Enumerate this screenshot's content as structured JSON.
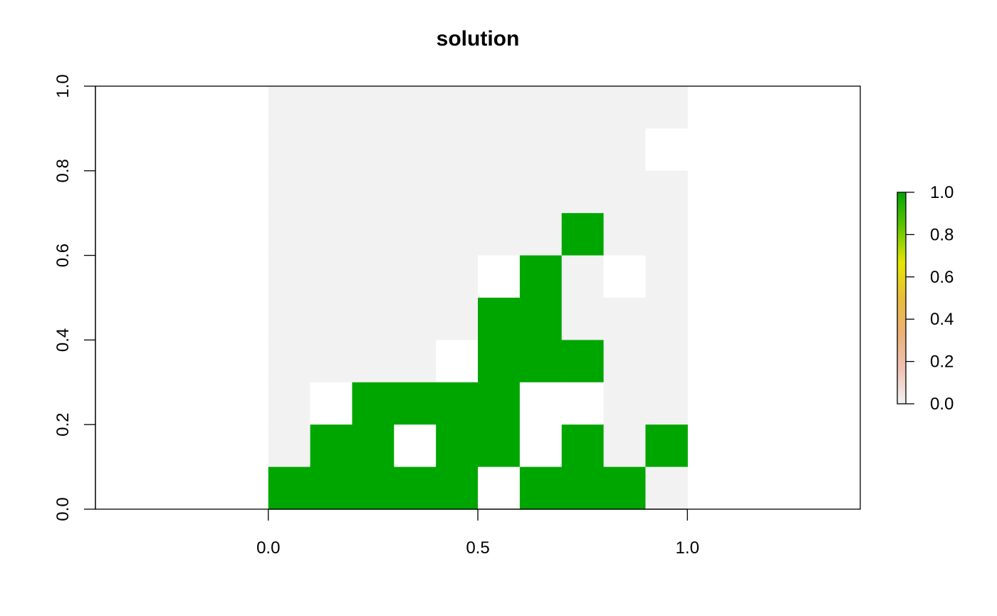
{
  "chart_data": {
    "type": "heatmap",
    "title": "solution",
    "xlabel": "",
    "ylabel": "",
    "xlim": [
      -0.4125,
      1.4125
    ],
    "ylim": [
      0,
      1
    ],
    "x_ticks": [
      0.0,
      0.5,
      1.0
    ],
    "x_tick_labels": [
      "0.0",
      "0.5",
      "1.0"
    ],
    "y_ticks": [
      0.0,
      0.2,
      0.4,
      0.6,
      0.8,
      1.0
    ],
    "y_tick_labels": [
      "0.0",
      "0.2",
      "0.4",
      "0.6",
      "0.8",
      "1.0"
    ],
    "grid_extent": {
      "x": [
        0,
        1
      ],
      "y": [
        0,
        1
      ]
    },
    "grid_note_rows": "row 0 is top (y 0.9-1.0); null = no data",
    "cells": [
      [
        0,
        0,
        0,
        0,
        0,
        0,
        0,
        0,
        0,
        0
      ],
      [
        0,
        0,
        0,
        0,
        0,
        0,
        0,
        0,
        0,
        null
      ],
      [
        0,
        0,
        0,
        0,
        0,
        0,
        0,
        0,
        0,
        0
      ],
      [
        0,
        0,
        0,
        0,
        0,
        0,
        0,
        1,
        0,
        0
      ],
      [
        0,
        0,
        0,
        0,
        0,
        null,
        1,
        0,
        null,
        0
      ],
      [
        0,
        0,
        0,
        0,
        0,
        1,
        1,
        0,
        0,
        0
      ],
      [
        0,
        0,
        0,
        0,
        null,
        1,
        1,
        1,
        0,
        0
      ],
      [
        0,
        null,
        1,
        1,
        1,
        1,
        null,
        null,
        0,
        0
      ],
      [
        0,
        1,
        1,
        null,
        1,
        1,
        null,
        1,
        0,
        1
      ],
      [
        1,
        1,
        1,
        1,
        1,
        null,
        1,
        1,
        1,
        0
      ]
    ],
    "colors": {
      "zero": "#f2f2f2",
      "one": "#00a600",
      "na": "#ffffff"
    },
    "legend": {
      "placement": "right",
      "range": [
        0,
        1
      ],
      "ticks": [
        0.0,
        0.2,
        0.4,
        0.6,
        0.8,
        1.0
      ],
      "tick_labels": [
        "0.0",
        "0.2",
        "0.4",
        "0.6",
        "0.8",
        "1.0"
      ],
      "gradient": [
        "#f2f2f2",
        "#efc2b3",
        "#ecb176",
        "#e9bd3a",
        "#e6e600",
        "#63c600",
        "#00a600"
      ]
    }
  }
}
